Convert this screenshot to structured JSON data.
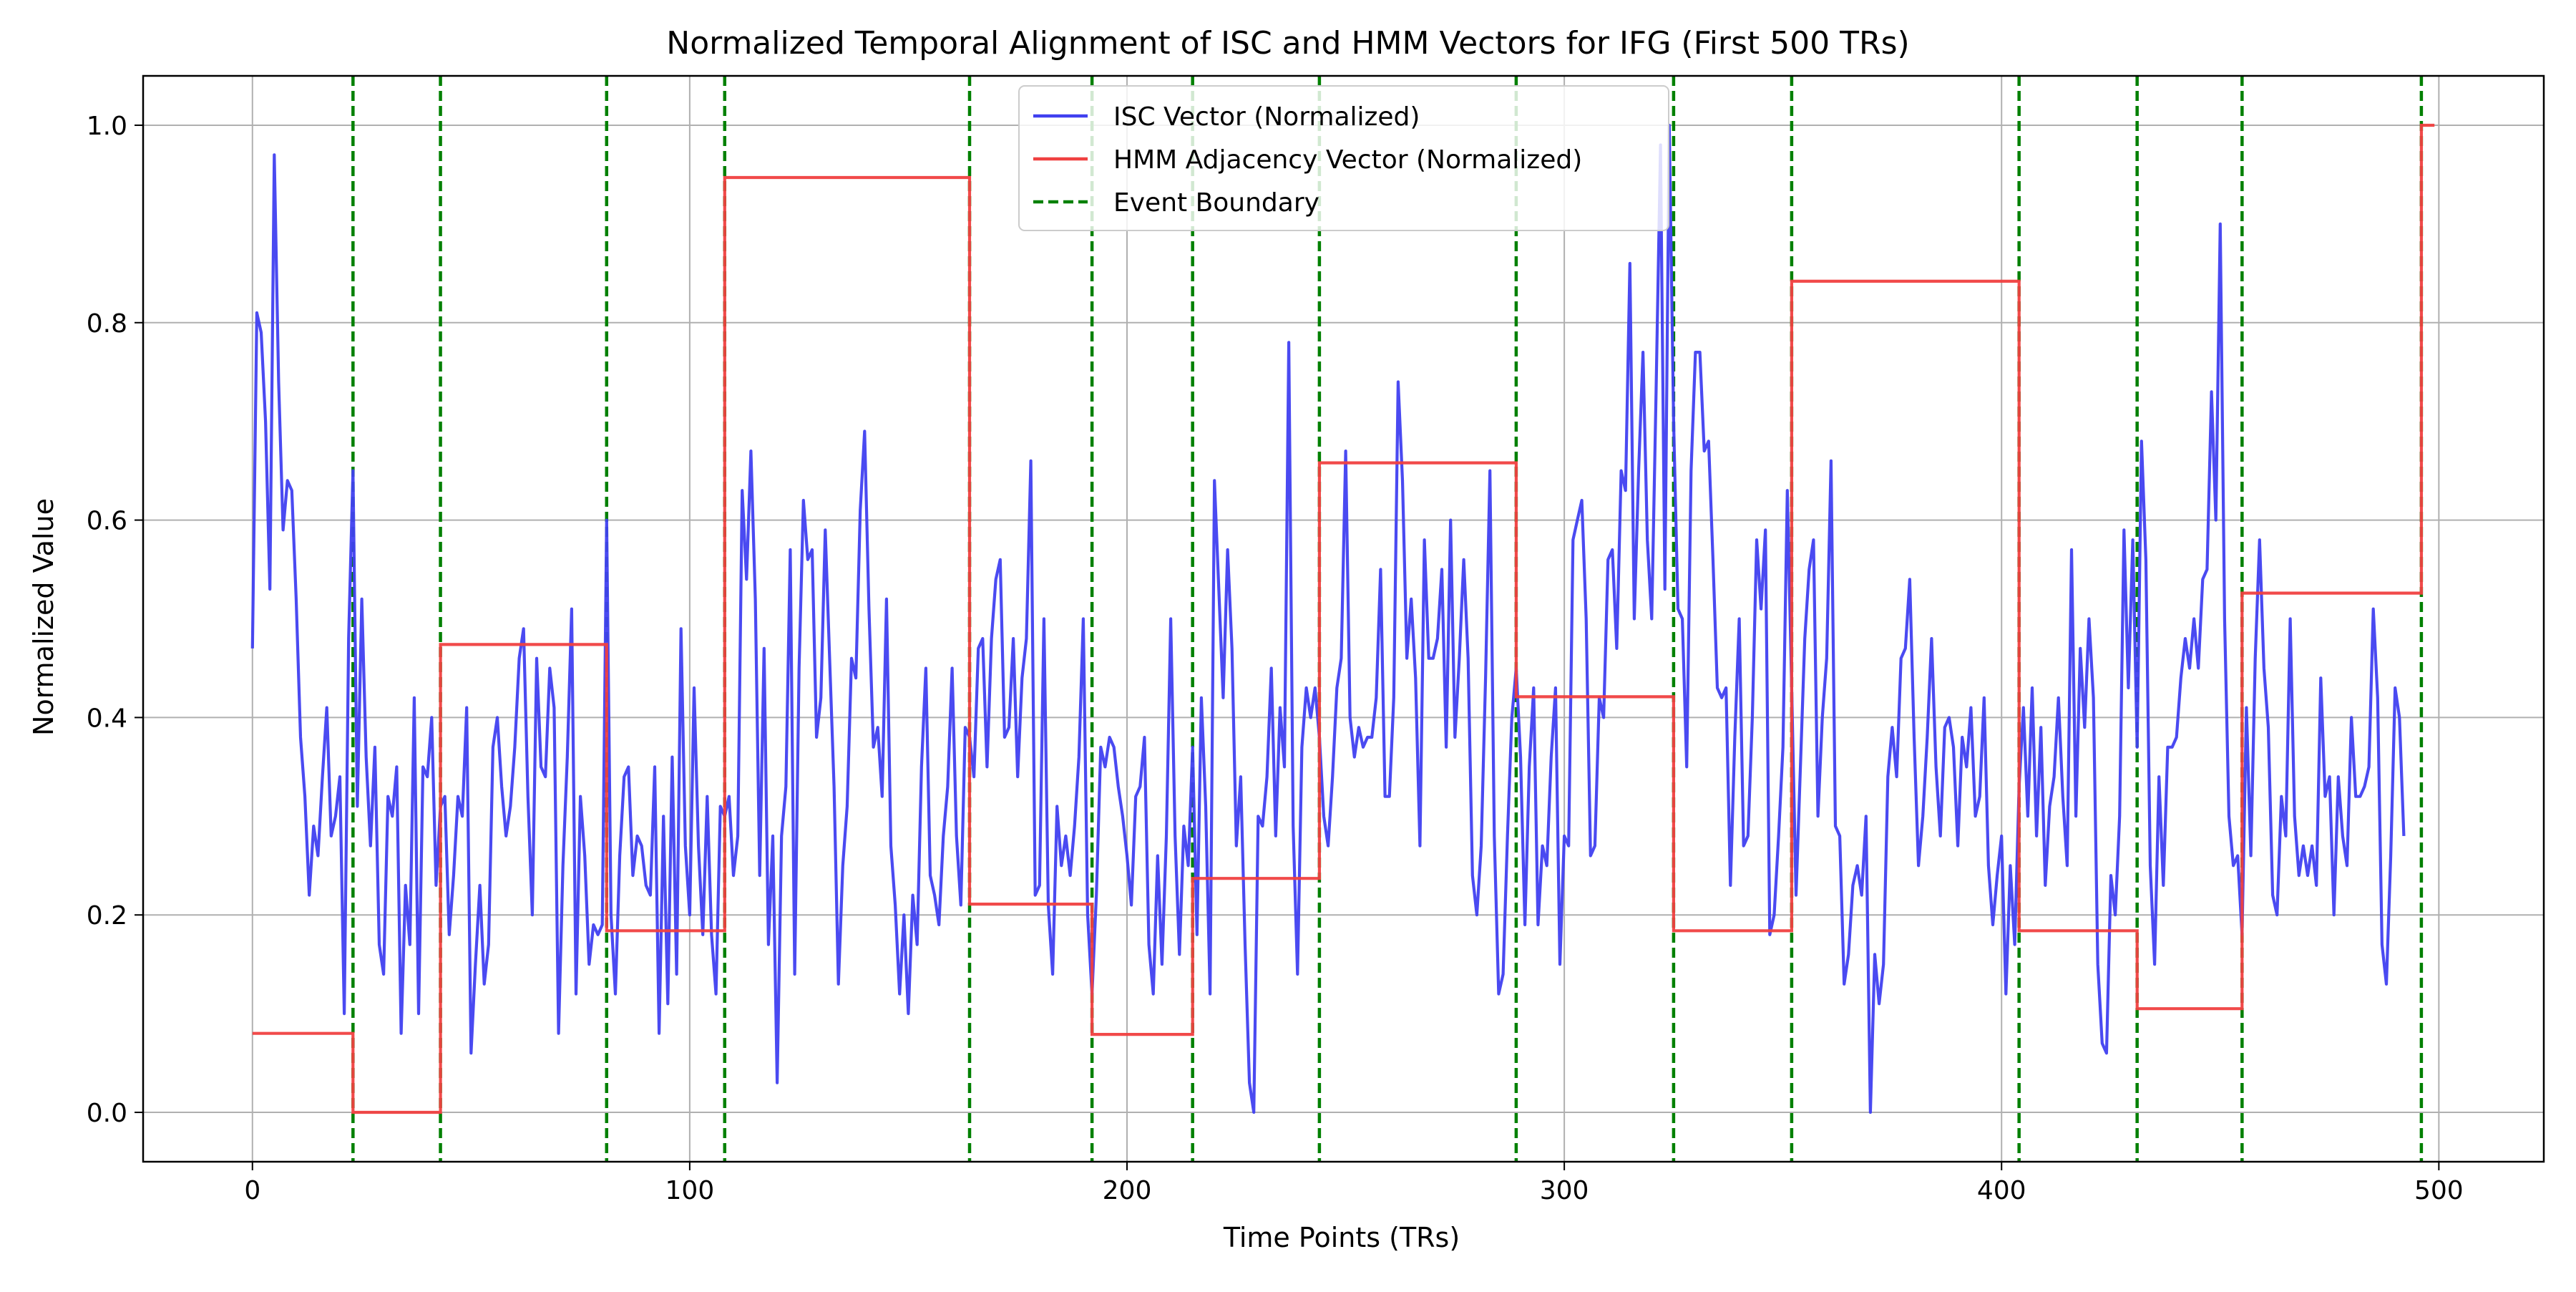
{
  "chart_data": {
    "type": "line",
    "title": "Normalized Temporal Alignment of ISC and HMM Vectors for IFG (First 500 TRs)",
    "xlabel": "Time Points (TRs)",
    "ylabel": "Normalized Value",
    "xlim": [
      -25,
      524
    ],
    "ylim": [
      -0.05,
      1.05
    ],
    "xticks": [
      0,
      100,
      200,
      300,
      400,
      500
    ],
    "yticks": [
      0.0,
      0.2,
      0.4,
      0.6,
      0.8,
      1.0
    ],
    "grid": true,
    "legend_position": "upper-center",
    "legend": [
      {
        "label": "ISC Vector (Normalized)",
        "color": "#4040f0",
        "style": "solid"
      },
      {
        "label": "HMM Adjacency Vector (Normalized)",
        "color": "#f04040",
        "style": "solid"
      },
      {
        "label": "Event Boundary",
        "color": "#008000",
        "style": "dashed"
      }
    ],
    "series": [
      {
        "name": "ISC Vector (Normalized)",
        "color": "#4040f0",
        "x_start": 0,
        "x_step": 1,
        "values": [
          0.47,
          0.81,
          0.79,
          0.7,
          0.53,
          0.97,
          0.74,
          0.59,
          0.64,
          0.63,
          0.52,
          0.38,
          0.32,
          0.22,
          0.29,
          0.26,
          0.34,
          0.41,
          0.28,
          0.3,
          0.34,
          0.1,
          0.48,
          0.65,
          0.31,
          0.52,
          0.36,
          0.27,
          0.37,
          0.17,
          0.14,
          0.32,
          0.3,
          0.35,
          0.08,
          0.23,
          0.17,
          0.42,
          0.1,
          0.35,
          0.34,
          0.4,
          0.23,
          0.31,
          0.32,
          0.18,
          0.24,
          0.32,
          0.3,
          0.41,
          0.06,
          0.15,
          0.23,
          0.13,
          0.17,
          0.37,
          0.4,
          0.33,
          0.28,
          0.31,
          0.37,
          0.46,
          0.49,
          0.32,
          0.2,
          0.46,
          0.35,
          0.34,
          0.45,
          0.41,
          0.08,
          0.25,
          0.36,
          0.51,
          0.12,
          0.32,
          0.26,
          0.15,
          0.19,
          0.18,
          0.19,
          0.6,
          0.2,
          0.12,
          0.26,
          0.34,
          0.35,
          0.24,
          0.28,
          0.27,
          0.23,
          0.22,
          0.35,
          0.08,
          0.3,
          0.11,
          0.36,
          0.14,
          0.49,
          0.27,
          0.2,
          0.43,
          0.27,
          0.18,
          0.32,
          0.18,
          0.12,
          0.31,
          0.3,
          0.32,
          0.24,
          0.28,
          0.63,
          0.54,
          0.67,
          0.52,
          0.24,
          0.47,
          0.17,
          0.28,
          0.03,
          0.28,
          0.33,
          0.57,
          0.14,
          0.45,
          0.62,
          0.56,
          0.57,
          0.38,
          0.42,
          0.59,
          0.46,
          0.33,
          0.13,
          0.25,
          0.31,
          0.46,
          0.44,
          0.61,
          0.69,
          0.51,
          0.37,
          0.39,
          0.32,
          0.52,
          0.27,
          0.21,
          0.12,
          0.2,
          0.1,
          0.22,
          0.17,
          0.35,
          0.45,
          0.24,
          0.22,
          0.19,
          0.28,
          0.33,
          0.45,
          0.28,
          0.21,
          0.39,
          0.38,
          0.34,
          0.47,
          0.48,
          0.35,
          0.48,
          0.54,
          0.56,
          0.38,
          0.39,
          0.48,
          0.34,
          0.44,
          0.48,
          0.66,
          0.22,
          0.23,
          0.5,
          0.21,
          0.14,
          0.31,
          0.25,
          0.28,
          0.24,
          0.29,
          0.36,
          0.5,
          0.2,
          0.12,
          0.22,
          0.37,
          0.35,
          0.38,
          0.37,
          0.33,
          0.3,
          0.26,
          0.21,
          0.32,
          0.33,
          0.38,
          0.17,
          0.12,
          0.26,
          0.15,
          0.28,
          0.5,
          0.28,
          0.16,
          0.29,
          0.25,
          0.37,
          0.18,
          0.42,
          0.31,
          0.12,
          0.64,
          0.53,
          0.42,
          0.57,
          0.47,
          0.27,
          0.34,
          0.17,
          0.03,
          0.0,
          0.3,
          0.29,
          0.34,
          0.45,
          0.28,
          0.41,
          0.35,
          0.78,
          0.29,
          0.14,
          0.37,
          0.43,
          0.4,
          0.43,
          0.38,
          0.3,
          0.27,
          0.34,
          0.43,
          0.46,
          0.67,
          0.4,
          0.36,
          0.39,
          0.37,
          0.38,
          0.38,
          0.42,
          0.55,
          0.32,
          0.32,
          0.42,
          0.74,
          0.64,
          0.46,
          0.52,
          0.44,
          0.27,
          0.58,
          0.46,
          0.46,
          0.48,
          0.55,
          0.37,
          0.6,
          0.38,
          0.46,
          0.56,
          0.46,
          0.24,
          0.2,
          0.27,
          0.44,
          0.65,
          0.28,
          0.12,
          0.14,
          0.28,
          0.4,
          0.45,
          0.36,
          0.19,
          0.35,
          0.43,
          0.19,
          0.27,
          0.25,
          0.36,
          0.43,
          0.15,
          0.28,
          0.27,
          0.58,
          0.6,
          0.62,
          0.5,
          0.26,
          0.27,
          0.42,
          0.4,
          0.56,
          0.57,
          0.47,
          0.65,
          0.63,
          0.86,
          0.5,
          0.65,
          0.77,
          0.58,
          0.5,
          0.73,
          0.98,
          0.53,
          1.0,
          0.7,
          0.51,
          0.5,
          0.35,
          0.65,
          0.77,
          0.77,
          0.67,
          0.68,
          0.56,
          0.43,
          0.42,
          0.43,
          0.23,
          0.38,
          0.5,
          0.27,
          0.28,
          0.4,
          0.58,
          0.51,
          0.59,
          0.18,
          0.2,
          0.28,
          0.37,
          0.63,
          0.43,
          0.22,
          0.35,
          0.48,
          0.55,
          0.58,
          0.3,
          0.4,
          0.46,
          0.66,
          0.29,
          0.28,
          0.13,
          0.16,
          0.23,
          0.25,
          0.22,
          0.3,
          0.0,
          0.16,
          0.11,
          0.15,
          0.34,
          0.39,
          0.34,
          0.46,
          0.47,
          0.54,
          0.38,
          0.25,
          0.3,
          0.38,
          0.48,
          0.35,
          0.28,
          0.39,
          0.4,
          0.37,
          0.27,
          0.38,
          0.35,
          0.41,
          0.3,
          0.32,
          0.42,
          0.25,
          0.19,
          0.24,
          0.28,
          0.12,
          0.25,
          0.17,
          0.33,
          0.41,
          0.3,
          0.43,
          0.28,
          0.39,
          0.23,
          0.31,
          0.34,
          0.42,
          0.32,
          0.25,
          0.57,
          0.3,
          0.47,
          0.39,
          0.5,
          0.42,
          0.15,
          0.07,
          0.06,
          0.24,
          0.2,
          0.3,
          0.59,
          0.43,
          0.58,
          0.37,
          0.68,
          0.56,
          0.25,
          0.15,
          0.34,
          0.23,
          0.37,
          0.37,
          0.38,
          0.44,
          0.48,
          0.45,
          0.5,
          0.45,
          0.54,
          0.55,
          0.73,
          0.6,
          0.9,
          0.5,
          0.3,
          0.25,
          0.26,
          0.18,
          0.41,
          0.26,
          0.46,
          0.58,
          0.45,
          0.39,
          0.22,
          0.2,
          0.32,
          0.28,
          0.5,
          0.3,
          0.24,
          0.27,
          0.24,
          0.27,
          0.23,
          0.44,
          0.32,
          0.34,
          0.2,
          0.34,
          0.28,
          0.25,
          0.4,
          0.32,
          0.32,
          0.33,
          0.35,
          0.51,
          0.42,
          0.17,
          0.13,
          0.26,
          0.43,
          0.4,
          0.28
        ]
      },
      {
        "name": "HMM Adjacency Vector (Normalized)",
        "color": "#f04040",
        "steps": [
          {
            "x0": 0,
            "x1": 23,
            "value": 0.08
          },
          {
            "x0": 23,
            "x1": 43,
            "value": 0.0
          },
          {
            "x0": 43,
            "x1": 81,
            "value": 0.474
          },
          {
            "x0": 81,
            "x1": 108,
            "value": 0.184
          },
          {
            "x0": 108,
            "x1": 164,
            "value": 0.947
          },
          {
            "x0": 164,
            "x1": 192,
            "value": 0.211
          },
          {
            "x0": 192,
            "x1": 215,
            "value": 0.079
          },
          {
            "x0": 215,
            "x1": 244,
            "value": 0.237
          },
          {
            "x0": 244,
            "x1": 289,
            "value": 0.658
          },
          {
            "x0": 289,
            "x1": 325,
            "value": 0.421
          },
          {
            "x0": 325,
            "x1": 352,
            "value": 0.184
          },
          {
            "x0": 352,
            "x1": 404,
            "value": 0.842
          },
          {
            "x0": 404,
            "x1": 431,
            "value": 0.184
          },
          {
            "x0": 431,
            "x1": 455,
            "value": 0.105
          },
          {
            "x0": 455,
            "x1": 496,
            "value": 0.526
          },
          {
            "x0": 496,
            "x1": 499,
            "value": 1.0
          }
        ]
      }
    ],
    "event_boundaries": [
      23,
      43,
      81,
      108,
      164,
      192,
      215,
      244,
      289,
      325,
      352,
      404,
      431,
      455,
      496
    ]
  }
}
